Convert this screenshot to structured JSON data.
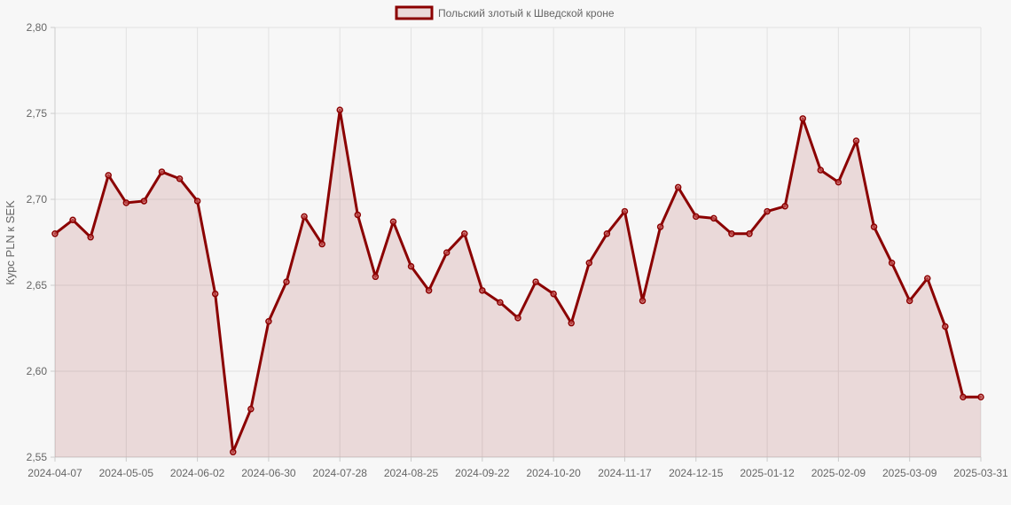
{
  "chart_data": {
    "type": "area",
    "legend": {
      "label": "Польский злотый к Шведской кроне",
      "placement": "top-center"
    },
    "ylabel": "Курс PLN к SEK",
    "ylim": [
      2.55,
      2.8
    ],
    "y_ticks": [
      "2,80",
      "2,75",
      "2,70",
      "2,65",
      "2,60",
      "2,55"
    ],
    "y_tick_values": [
      2.8,
      2.75,
      2.7,
      2.65,
      2.6,
      2.55
    ],
    "x_tick_labels": [
      "2024-04-07",
      "2024-05-05",
      "2024-06-02",
      "2024-06-30",
      "2024-07-28",
      "2024-08-25",
      "2024-09-22",
      "2024-10-20",
      "2024-11-17",
      "2024-12-15",
      "2025-01-12",
      "2025-02-09",
      "2025-03-09",
      "2025-03-31"
    ],
    "grid": true,
    "x": [
      "2024-04-07",
      "2024-04-14",
      "2024-04-21",
      "2024-04-28",
      "2024-05-05",
      "2024-05-12",
      "2024-05-19",
      "2024-05-26",
      "2024-06-02",
      "2024-06-09",
      "2024-06-16",
      "2024-06-23",
      "2024-06-30",
      "2024-07-07",
      "2024-07-14",
      "2024-07-21",
      "2024-07-28",
      "2024-08-04",
      "2024-08-11",
      "2024-08-18",
      "2024-08-25",
      "2024-09-01",
      "2024-09-08",
      "2024-09-15",
      "2024-09-22",
      "2024-09-29",
      "2024-10-06",
      "2024-10-13",
      "2024-10-20",
      "2024-10-27",
      "2024-11-03",
      "2024-11-10",
      "2024-11-17",
      "2024-11-24",
      "2024-12-01",
      "2024-12-08",
      "2024-12-15",
      "2024-12-22",
      "2024-12-29",
      "2025-01-05",
      "2025-01-12",
      "2025-01-19",
      "2025-01-26",
      "2025-02-02",
      "2025-02-09",
      "2025-02-16",
      "2025-02-23",
      "2025-03-02",
      "2025-03-09",
      "2025-03-16",
      "2025-03-23",
      "2025-03-30",
      "2025-03-31"
    ],
    "series": [
      {
        "name": "Польский злотый к Шведской кроне",
        "color": "#8b0000",
        "fill": "rgba(139,0,0,0.12)",
        "values": [
          2.68,
          2.688,
          2.678,
          2.714,
          2.698,
          2.699,
          2.716,
          2.712,
          2.699,
          2.645,
          2.553,
          2.578,
          2.629,
          2.652,
          2.69,
          2.674,
          2.752,
          2.691,
          2.655,
          2.687,
          2.661,
          2.647,
          2.669,
          2.68,
          2.647,
          2.64,
          2.631,
          2.652,
          2.645,
          2.628,
          2.663,
          2.68,
          2.693,
          2.641,
          2.684,
          2.707,
          2.69,
          2.689,
          2.68,
          2.68,
          2.693,
          2.696,
          2.747,
          2.717,
          2.71,
          2.734,
          2.684,
          2.663,
          2.641,
          2.654,
          2.626,
          2.585,
          2.585
        ]
      }
    ]
  }
}
